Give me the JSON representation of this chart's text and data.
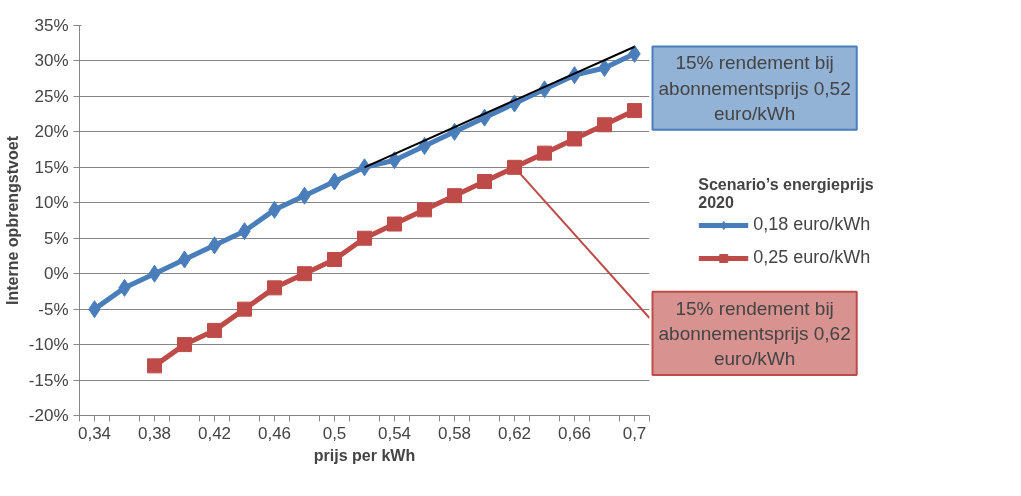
{
  "chart_data": {
    "type": "line",
    "xlabel": "prijs per kWh",
    "ylabel": "Interne opbrengstvoet",
    "legend_title": "Scenario’s energieprijs 2020",
    "x": [
      0.34,
      0.36,
      0.38,
      0.4,
      0.42,
      0.44,
      0.46,
      0.48,
      0.5,
      0.52,
      0.54,
      0.56,
      0.58,
      0.6,
      0.62,
      0.64,
      0.66,
      0.68,
      0.7
    ],
    "series": [
      {
        "name": "0,18 euro/kWh",
        "color": "#4a7ebb",
        "marker": "diamond",
        "values": [
          -5,
          -2,
          0,
          2,
          4,
          6,
          9,
          11,
          13,
          15,
          16,
          18,
          20,
          22,
          24,
          26,
          28,
          29,
          31
        ]
      },
      {
        "name": "0,25 euro/kWh",
        "color": "#be4b48",
        "marker": "square",
        "x": [
          0.38,
          0.4,
          0.42,
          0.44,
          0.46,
          0.48,
          0.5,
          0.52,
          0.54,
          0.56,
          0.58,
          0.6,
          0.62,
          0.64,
          0.66,
          0.68,
          0.7
        ],
        "values": [
          -13,
          -10,
          -8,
          -5,
          -2,
          0,
          2,
          5,
          7,
          9,
          11,
          13,
          15,
          17,
          19,
          21,
          23
        ]
      },
      {
        "type": "line",
        "color": "#000000",
        "marker": "none",
        "x": [
          0.52,
          0.7
        ],
        "values": [
          15,
          32
        ]
      }
    ],
    "annotations": [
      "15% rendement bij abonnementsprijs 0,52 euro/kWh",
      {
        "text": "15% rendement bij abonnementsprijs 0,62 euro/kWh",
        "x": 0.62,
        "y": 15
      }
    ],
    "xlim": [
      0.33,
      0.71
    ],
    "xticks": [
      {
        "value": 0.33,
        "label": null
      },
      {
        "value": 0.34,
        "label": "0,34"
      },
      {
        "value": 0.35,
        "label": null
      },
      {
        "value": 0.37,
        "label": null
      },
      {
        "value": 0.38,
        "label": "0,38"
      },
      {
        "value": 0.39,
        "label": null
      },
      {
        "value": 0.41,
        "label": null
      },
      {
        "value": 0.42,
        "label": "0,42"
      },
      {
        "value": 0.43,
        "label": null
      },
      {
        "value": 0.45,
        "label": null
      },
      {
        "value": 0.46,
        "label": "0,46"
      },
      {
        "value": 0.47,
        "label": null
      },
      {
        "value": 0.49,
        "label": null
      },
      {
        "value": 0.5,
        "label": "0,5"
      },
      {
        "value": 0.51,
        "label": null
      },
      {
        "value": 0.53,
        "label": null
      },
      {
        "value": 0.54,
        "label": "0,54"
      },
      {
        "value": 0.55,
        "label": null
      },
      {
        "value": 0.57,
        "label": null
      },
      {
        "value": 0.58,
        "label": "0,58"
      },
      {
        "value": 0.59,
        "label": null
      },
      {
        "value": 0.61,
        "label": null
      },
      {
        "value": 0.62,
        "label": "0,62"
      },
      {
        "value": 0.63,
        "label": null
      },
      {
        "value": 0.65,
        "label": null
      },
      {
        "value": 0.66,
        "label": "0,66"
      },
      {
        "value": 0.67,
        "label": null
      },
      {
        "value": 0.69,
        "label": null
      },
      {
        "value": 0.7,
        "label": "0,7"
      },
      {
        "value": 0.71,
        "label": null
      }
    ],
    "ylim": [
      -20,
      35
    ],
    "yticks": [
      {
        "value": -20,
        "label": "-20%"
      },
      {
        "value": -15,
        "label": "-15%"
      },
      {
        "value": -10,
        "label": "-10%"
      },
      {
        "value": -5,
        "label": "-5%"
      },
      {
        "value": 0,
        "label": "0%"
      },
      {
        "value": 5,
        "label": "5%"
      },
      {
        "value": 10,
        "label": "10%"
      },
      {
        "value": 15,
        "label": "15%"
      },
      {
        "value": 20,
        "label": "20%"
      },
      {
        "value": 25,
        "label": "25%"
      },
      {
        "value": 30,
        "label": "30%"
      },
      {
        "value": 35,
        "label": "35%"
      }
    ],
    "grid": "y",
    "legend": "right",
    "line_style": "solid"
  }
}
